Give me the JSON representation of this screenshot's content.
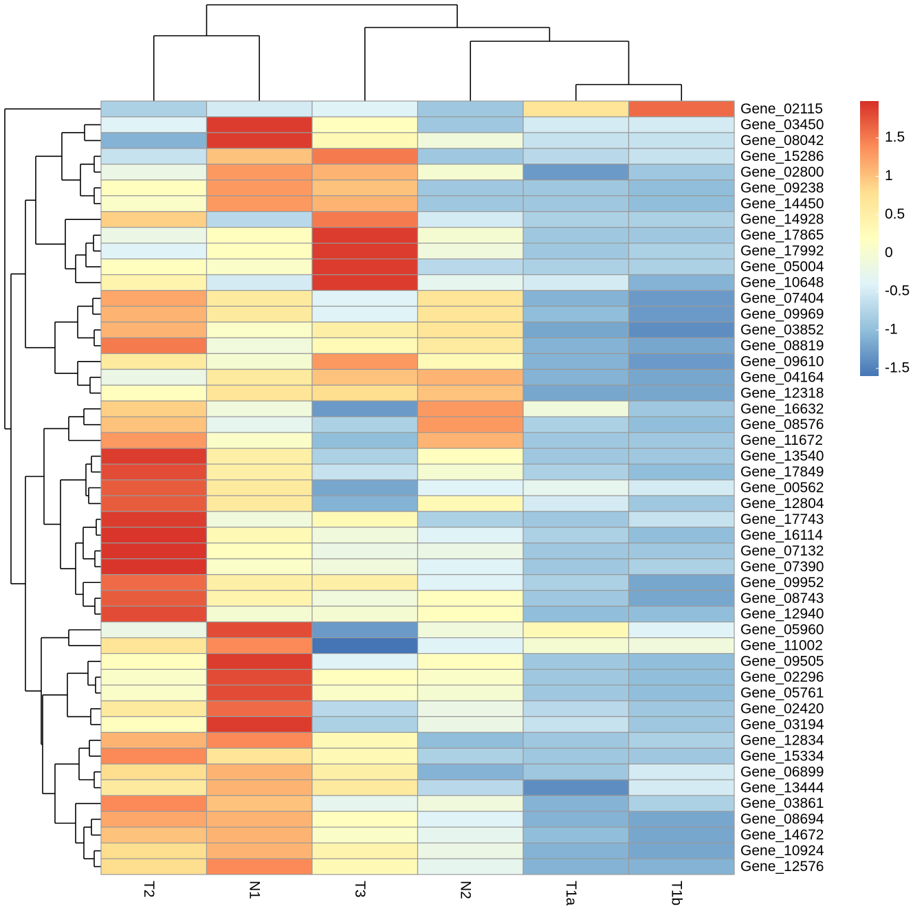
{
  "chart_data": {
    "type": "heatmap",
    "categories": [
      "T2",
      "N1",
      "T3",
      "N2",
      "T1a",
      "T1b"
    ],
    "rows": [
      "Gene_02115",
      "Gene_03450",
      "Gene_08042",
      "Gene_15286",
      "Gene_02800",
      "Gene_09238",
      "Gene_14450",
      "Gene_14928",
      "Gene_17865",
      "Gene_17992",
      "Gene_05004",
      "Gene_10648",
      "Gene_07404",
      "Gene_09969",
      "Gene_03852",
      "Gene_08819",
      "Gene_09610",
      "Gene_04164",
      "Gene_12318",
      "Gene_16632",
      "Gene_08576",
      "Gene_11672",
      "Gene_13540",
      "Gene_17849",
      "Gene_00562",
      "Gene_12804",
      "Gene_17743",
      "Gene_16114",
      "Gene_07132",
      "Gene_07390",
      "Gene_09952",
      "Gene_08743",
      "Gene_12940",
      "Gene_05960",
      "Gene_11002",
      "Gene_09505",
      "Gene_02296",
      "Gene_05761",
      "Gene_02420",
      "Gene_03194",
      "Gene_12834",
      "Gene_15334",
      "Gene_06899",
      "Gene_13444",
      "Gene_03861",
      "Gene_08694",
      "Gene_14672",
      "Gene_10924",
      "Gene_12576"
    ],
    "values": [
      [
        -0.8,
        -0.5,
        -0.4,
        -0.9,
        0.7,
        1.6
      ],
      [
        -0.4,
        1.9,
        0.2,
        -0.9,
        -0.5,
        -0.5
      ],
      [
        -1.1,
        1.9,
        0.3,
        -0.1,
        -0.6,
        -0.6
      ],
      [
        -0.6,
        1.0,
        1.5,
        -0.9,
        -0.7,
        -0.6
      ],
      [
        -0.2,
        1.3,
        1.1,
        0.0,
        -1.3,
        -0.9
      ],
      [
        0.2,
        1.3,
        1.0,
        -0.9,
        -0.9,
        -1.0
      ],
      [
        0.1,
        1.3,
        1.1,
        -0.9,
        -0.9,
        -1.0
      ],
      [
        0.9,
        -0.7,
        1.5,
        -0.5,
        -0.8,
        -0.8
      ],
      [
        -0.2,
        0.2,
        1.9,
        0.0,
        -0.9,
        -0.9
      ],
      [
        -0.4,
        0.2,
        1.9,
        -0.1,
        -0.9,
        -0.8
      ],
      [
        0.2,
        0.1,
        1.9,
        -0.7,
        -0.8,
        -0.8
      ],
      [
        0.4,
        -0.5,
        1.9,
        -0.3,
        -0.5,
        -1.1
      ],
      [
        1.2,
        0.6,
        -0.4,
        0.7,
        -1.1,
        -1.3
      ],
      [
        1.1,
        0.6,
        -0.4,
        0.7,
        -1.0,
        -1.3
      ],
      [
        1.1,
        0.1,
        0.5,
        0.7,
        -1.2,
        -1.4
      ],
      [
        1.5,
        -0.1,
        0.3,
        0.6,
        -1.1,
        -1.2
      ],
      [
        0.6,
        0.0,
        1.3,
        0.3,
        -1.1,
        -1.3
      ],
      [
        -0.2,
        0.6,
        1.0,
        1.1,
        -1.1,
        -1.2
      ],
      [
        0.2,
        0.7,
        0.8,
        1.0,
        -1.2,
        -1.2
      ],
      [
        0.9,
        -0.1,
        -1.3,
        1.3,
        -0.1,
        -0.9
      ],
      [
        1.0,
        -0.3,
        -0.8,
        1.3,
        -0.8,
        -1.0
      ],
      [
        1.3,
        0.1,
        -1.0,
        1.1,
        -0.9,
        -0.9
      ],
      [
        1.9,
        0.5,
        -0.8,
        0.2,
        -0.9,
        -0.9
      ],
      [
        1.8,
        0.5,
        -0.6,
        0.0,
        -0.8,
        -1.0
      ],
      [
        1.7,
        0.6,
        -1.2,
        -0.4,
        -0.3,
        -0.5
      ],
      [
        1.7,
        0.6,
        -1.1,
        0.3,
        -0.5,
        -0.9
      ],
      [
        1.9,
        -0.1,
        0.3,
        -0.8,
        -0.9,
        -0.6
      ],
      [
        1.95,
        0.3,
        -0.1,
        -0.4,
        -0.8,
        -1.0
      ],
      [
        1.95,
        0.2,
        -0.2,
        -0.2,
        -0.9,
        -0.9
      ],
      [
        1.95,
        0.1,
        -0.1,
        -0.4,
        -0.9,
        -0.8
      ],
      [
        1.6,
        0.5,
        0.5,
        -0.4,
        -0.8,
        -1.2
      ],
      [
        1.7,
        0.4,
        -0.1,
        0.2,
        -0.9,
        -1.2
      ],
      [
        1.8,
        0.0,
        0.0,
        0.2,
        -1.0,
        -1.0
      ],
      [
        -0.2,
        1.8,
        -1.3,
        -0.1,
        0.3,
        -0.4
      ],
      [
        0.7,
        1.4,
        -1.6,
        -0.4,
        0.0,
        -0.1
      ],
      [
        0.2,
        1.9,
        -0.4,
        0.2,
        -0.9,
        -1.0
      ],
      [
        0.1,
        1.8,
        0.2,
        0.1,
        -0.9,
        -1.0
      ],
      [
        0.1,
        1.8,
        0.1,
        0.0,
        -0.9,
        -1.0
      ],
      [
        0.6,
        1.6,
        -0.7,
        -0.2,
        -0.7,
        -0.9
      ],
      [
        0.2,
        1.9,
        -0.8,
        -0.2,
        -0.6,
        -0.9
      ],
      [
        1.1,
        1.4,
        0.3,
        -1.0,
        -0.9,
        -0.8
      ],
      [
        1.4,
        0.7,
        0.3,
        -0.8,
        -0.9,
        -0.9
      ],
      [
        0.8,
        1.1,
        0.5,
        -1.1,
        -0.9,
        -0.5
      ],
      [
        0.6,
        1.1,
        0.6,
        -0.7,
        -1.4,
        -0.5
      ],
      [
        1.4,
        1.0,
        -0.3,
        -0.1,
        -1.1,
        -0.8
      ],
      [
        1.2,
        1.1,
        0.2,
        -0.4,
        -1.1,
        -1.2
      ],
      [
        1.0,
        1.1,
        0.1,
        -0.3,
        -1.0,
        -1.2
      ],
      [
        0.8,
        1.1,
        0.4,
        -0.2,
        -1.1,
        -1.2
      ],
      [
        0.8,
        1.4,
        0.3,
        -0.3,
        -1.1,
        -1.1
      ]
    ],
    "colors": [
      "#4575B4",
      "#91BFDB",
      "#E0F3F8",
      "#FFFFBF",
      "#FEE090",
      "#FC8D59",
      "#D73027"
    ],
    "clim": [
      -1.6,
      1.98
    ],
    "cticks": [
      1.5,
      1,
      0.5,
      0,
      -0.5,
      -1,
      -1.5
    ]
  }
}
